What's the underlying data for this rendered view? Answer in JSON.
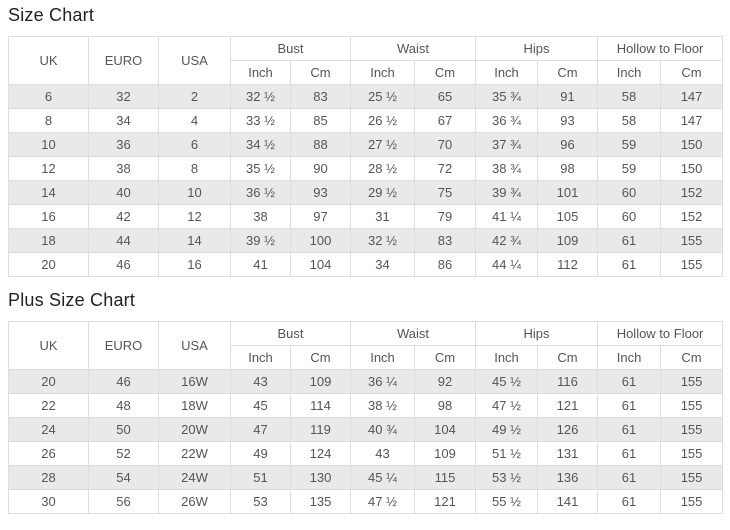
{
  "colors": {
    "stripe": "#e9e9e9",
    "border": "#dddddd",
    "text": "#555555",
    "heading": "#222222"
  },
  "tables": [
    {
      "title": "Size Chart",
      "single_columns": [
        "UK",
        "EURO",
        "USA"
      ],
      "column_groups": [
        {
          "label": "Bust",
          "sub": [
            "Inch",
            "Cm"
          ]
        },
        {
          "label": "Waist",
          "sub": [
            "Inch",
            "Cm"
          ]
        },
        {
          "label": "Hips",
          "sub": [
            "Inch",
            "Cm"
          ]
        },
        {
          "label": "Hollow to Floor",
          "sub": [
            "Inch",
            "Cm"
          ]
        }
      ],
      "rows": [
        [
          "6",
          "32",
          "2",
          "32 ½",
          "83",
          "25 ½",
          "65",
          "35 ¾",
          "91",
          "58",
          "147"
        ],
        [
          "8",
          "34",
          "4",
          "33 ½",
          "85",
          "26 ½",
          "67",
          "36 ¾",
          "93",
          "58",
          "147"
        ],
        [
          "10",
          "36",
          "6",
          "34 ½",
          "88",
          "27 ½",
          "70",
          "37 ¾",
          "96",
          "59",
          "150"
        ],
        [
          "12",
          "38",
          "8",
          "35 ½",
          "90",
          "28 ½",
          "72",
          "38 ¾",
          "98",
          "59",
          "150"
        ],
        [
          "14",
          "40",
          "10",
          "36 ½",
          "93",
          "29 ½",
          "75",
          "39 ¾",
          "101",
          "60",
          "152"
        ],
        [
          "16",
          "42",
          "12",
          "38",
          "97",
          "31",
          "79",
          "41 ¼",
          "105",
          "60",
          "152"
        ],
        [
          "18",
          "44",
          "14",
          "39 ½",
          "100",
          "32 ½",
          "83",
          "42 ¾",
          "109",
          "61",
          "155"
        ],
        [
          "20",
          "46",
          "16",
          "41",
          "104",
          "34",
          "86",
          "44 ¼",
          "112",
          "61",
          "155"
        ]
      ]
    },
    {
      "title": "Plus Size Chart",
      "single_columns": [
        "UK",
        "EURO",
        "USA"
      ],
      "column_groups": [
        {
          "label": "Bust",
          "sub": [
            "Inch",
            "Cm"
          ]
        },
        {
          "label": "Waist",
          "sub": [
            "Inch",
            "Cm"
          ]
        },
        {
          "label": "Hips",
          "sub": [
            "Inch",
            "Cm"
          ]
        },
        {
          "label": "Hollow to Floor",
          "sub": [
            "Inch",
            "Cm"
          ]
        }
      ],
      "rows": [
        [
          "20",
          "46",
          "16W",
          "43",
          "109",
          "36 ¼",
          "92",
          "45 ½",
          "116",
          "61",
          "155"
        ],
        [
          "22",
          "48",
          "18W",
          "45",
          "114",
          "38 ½",
          "98",
          "47 ½",
          "121",
          "61",
          "155"
        ],
        [
          "24",
          "50",
          "20W",
          "47",
          "119",
          "40 ¾",
          "104",
          "49 ½",
          "126",
          "61",
          "155"
        ],
        [
          "26",
          "52",
          "22W",
          "49",
          "124",
          "43",
          "109",
          "51 ½",
          "131",
          "61",
          "155"
        ],
        [
          "28",
          "54",
          "24W",
          "51",
          "130",
          "45 ¼",
          "115",
          "53 ½",
          "136",
          "61",
          "155"
        ],
        [
          "30",
          "56",
          "26W",
          "53",
          "135",
          "47 ½",
          "121",
          "55 ½",
          "141",
          "61",
          "155"
        ]
      ]
    }
  ]
}
